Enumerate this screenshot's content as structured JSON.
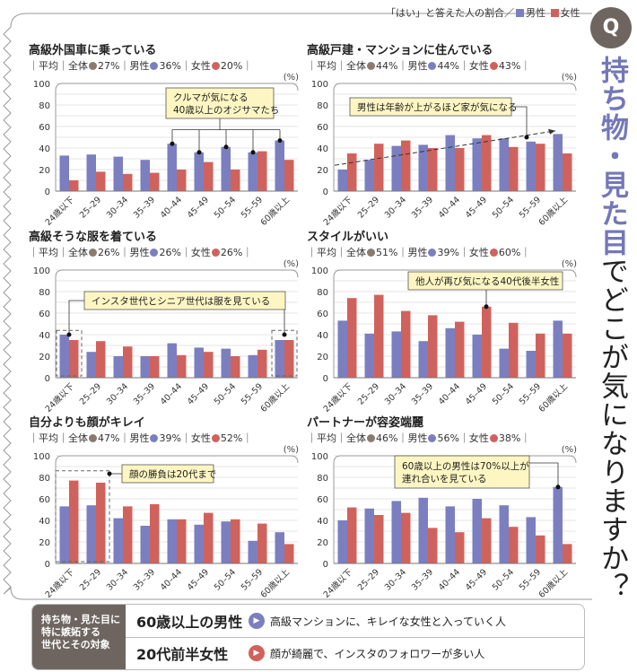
{
  "header": {
    "note": "「はい」と答えた人の割合／",
    "male_label": "男性",
    "female_label": "女性"
  },
  "badge": "Q",
  "vertical_title": {
    "highlight": "持ち物・見た目",
    "rest": "でどこが気になりますか？"
  },
  "colors": {
    "male": "#7b7fc0",
    "female": "#d0625d",
    "overall": "#8a7a70",
    "accent": "#7478b8"
  },
  "legend_labels": {
    "avg": "平均",
    "overall": "全体",
    "male": "男性",
    "female": "女性",
    "unit": "(%)"
  },
  "chart_data": [
    {
      "type": "bar",
      "title": "高級外国車に乗っている",
      "averages": {
        "overall": "27%",
        "male": "36%",
        "female": "20%"
      },
      "categories": [
        "24歳以下",
        "25–29",
        "30–34",
        "35–39",
        "40–44",
        "45–49",
        "50–54",
        "55–59",
        "60歳以上"
      ],
      "series": [
        {
          "name": "男性",
          "values": [
            33,
            34,
            32,
            29,
            44,
            36,
            41,
            36,
            47
          ]
        },
        {
          "name": "女性",
          "values": [
            10,
            18,
            16,
            17,
            20,
            27,
            20,
            37,
            29
          ]
        }
      ],
      "ylim": [
        0,
        100
      ],
      "yticks": [
        0,
        20,
        40,
        60,
        80,
        100
      ],
      "grid": true,
      "annotation": "クルマが気になる\n40歳以上のオジサマたち"
    },
    {
      "type": "bar",
      "title": "高級戸建・マンションに住んでいる",
      "averages": {
        "overall": "44%",
        "male": "44%",
        "female": "43%"
      },
      "categories": [
        "24歳以下",
        "25–29",
        "30–34",
        "35–39",
        "40–44",
        "45–49",
        "50–54",
        "55–59",
        "60歳以上"
      ],
      "series": [
        {
          "name": "男性",
          "values": [
            20,
            29,
            42,
            43,
            52,
            49,
            49,
            46,
            53
          ]
        },
        {
          "name": "女性",
          "values": [
            35,
            44,
            47,
            40,
            40,
            52,
            41,
            44,
            35
          ]
        }
      ],
      "ylim": [
        0,
        100
      ],
      "yticks": [
        0,
        20,
        40,
        60,
        80,
        100
      ],
      "grid": true,
      "annotation": "男性は年齢が上がるほど家が気になる"
    },
    {
      "type": "bar",
      "title": "高級そうな服を着ている",
      "averages": {
        "overall": "26%",
        "male": "26%",
        "female": "26%"
      },
      "categories": [
        "24歳以下",
        "25–29",
        "30–34",
        "35–39",
        "40–44",
        "45–49",
        "50–54",
        "55–59",
        "60歳以上"
      ],
      "series": [
        {
          "name": "男性",
          "values": [
            40,
            24,
            20,
            20,
            32,
            28,
            27,
            21,
            35
          ]
        },
        {
          "name": "女性",
          "values": [
            35,
            34,
            29,
            20,
            21,
            24,
            20,
            26,
            35
          ]
        }
      ],
      "ylim": [
        0,
        100
      ],
      "yticks": [
        0,
        20,
        40,
        60,
        80,
        100
      ],
      "grid": true,
      "annotation": "インスタ世代とシニア世代は服を見ている"
    },
    {
      "type": "bar",
      "title": "スタイルがいい",
      "averages": {
        "overall": "51%",
        "male": "39%",
        "female": "60%"
      },
      "categories": [
        "24歳以下",
        "25–29",
        "30–34",
        "35–39",
        "40–44",
        "45–49",
        "50–54",
        "55–59",
        "60歳以上"
      ],
      "series": [
        {
          "name": "男性",
          "values": [
            53,
            41,
            43,
            34,
            46,
            40,
            27,
            25,
            53
          ]
        },
        {
          "name": "女性",
          "values": [
            74,
            77,
            62,
            58,
            52,
            66,
            51,
            41,
            41
          ]
        }
      ],
      "ylim": [
        0,
        100
      ],
      "yticks": [
        0,
        20,
        40,
        60,
        80,
        100
      ],
      "grid": true,
      "annotation": "他人が再び気になる40代後半女性"
    },
    {
      "type": "bar",
      "title": "自分よりも顔がキレイ",
      "averages": {
        "overall": "47%",
        "male": "39%",
        "female": "52%"
      },
      "categories": [
        "24歳以下",
        "25–29",
        "30–34",
        "35–39",
        "40–44",
        "45–49",
        "50–54",
        "55–59",
        "60歳以上"
      ],
      "series": [
        {
          "name": "男性",
          "values": [
            53,
            54,
            42,
            35,
            41,
            36,
            39,
            21,
            29
          ]
        },
        {
          "name": "女性",
          "values": [
            77,
            75,
            53,
            55,
            41,
            47,
            41,
            37,
            18
          ]
        }
      ],
      "ylim": [
        0,
        100
      ],
      "yticks": [
        0,
        20,
        40,
        60,
        80,
        100
      ],
      "grid": true,
      "annotation": "顔の勝負は20代まで"
    },
    {
      "type": "bar",
      "title": "パートナーが容姿端麗",
      "averages": {
        "overall": "46%",
        "male": "56%",
        "female": "38%"
      },
      "categories": [
        "24歳以下",
        "25–29",
        "30–34",
        "35–39",
        "40–44",
        "45–49",
        "50–54",
        "55–59",
        "60歳以上"
      ],
      "series": [
        {
          "name": "男性",
          "values": [
            40,
            51,
            58,
            61,
            53,
            60,
            54,
            43,
            71
          ]
        },
        {
          "name": "女性",
          "values": [
            52,
            45,
            47,
            33,
            29,
            42,
            34,
            26,
            18
          ]
        }
      ],
      "ylim": [
        0,
        100
      ],
      "yticks": [
        0,
        20,
        40,
        60,
        80,
        100
      ],
      "grid": true,
      "annotation": "60歳以上の男性は70%以上が\n連れ合いを見ている"
    }
  ],
  "summary": {
    "label": "持ち物・見た目に\n特に嫉妬する\n世代とその対象",
    "rows": [
      {
        "group": "60歳以上の男性",
        "icon": "play-icon-blue",
        "desc": "高級マンションに、キレイな女性と入っていく人"
      },
      {
        "group": "20代前半女性",
        "icon": "play-icon-red",
        "desc": "顔が綺麗で、インスタのフォロワーが多い人"
      }
    ]
  }
}
